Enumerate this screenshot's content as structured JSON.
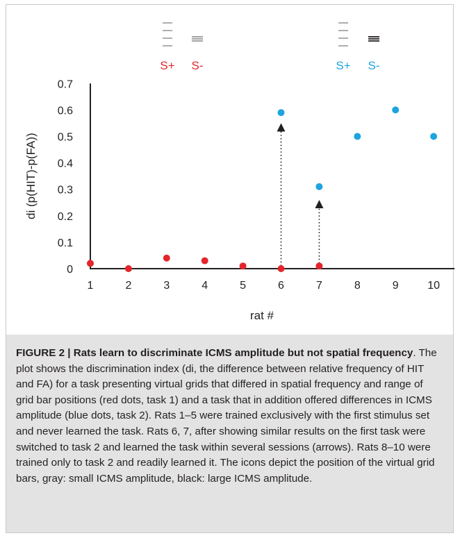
{
  "chart_data": {
    "type": "scatter",
    "x": [
      1,
      2,
      3,
      4,
      5,
      6,
      7,
      8,
      9,
      10
    ],
    "series": [
      {
        "color": "#e3262c",
        "points": [
          {
            "x": 1,
            "y": 0.02
          },
          {
            "x": 2,
            "y": 0.0
          },
          {
            "x": 3,
            "y": 0.04
          },
          {
            "x": 4,
            "y": 0.03
          },
          {
            "x": 5,
            "y": 0.01
          },
          {
            "x": 6,
            "y": 0.0
          },
          {
            "x": 7,
            "y": 0.01
          }
        ]
      },
      {
        "color": "#1ea4e0",
        "points": [
          {
            "x": 6,
            "y": 0.59
          },
          {
            "x": 7,
            "y": 0.31
          },
          {
            "x": 8,
            "y": 0.5
          },
          {
            "x": 9,
            "y": 0.6
          },
          {
            "x": 10,
            "y": 0.5
          }
        ]
      }
    ],
    "arrows": [
      {
        "x": 6,
        "from": 0.0,
        "to": 0.55
      },
      {
        "x": 7,
        "from": 0.01,
        "to": 0.26
      }
    ],
    "xlabel": "rat #",
    "ylabel": "di (p(HIT)-p(FA))",
    "xticks": [
      "1",
      "2",
      "3",
      "4",
      "5",
      "6",
      "7",
      "8",
      "9",
      "10"
    ],
    "yticks": [
      "0",
      "0.1",
      "0.2",
      "0.3",
      "0.4",
      "0.5",
      "0.6",
      "0.7"
    ],
    "xlim": [
      1,
      10
    ],
    "ylim": [
      0,
      0.7
    ],
    "grid": false,
    "legend": [
      {
        "label": "S+",
        "color": "#e3262c",
        "icon": "gray-wide-grid-icon"
      },
      {
        "label": "S-",
        "color": "#e3262c",
        "icon": "gray-narrow-grid-icon"
      },
      {
        "label": "S+",
        "color": "#1ea4e0",
        "icon": "gray-wide-grid-icon"
      },
      {
        "label": "S-",
        "color": "#1ea4e0",
        "icon": "black-narrow-grid-icon"
      }
    ]
  },
  "caption": {
    "lead": "FIGURE 2 | Rats learn to discriminate ICMS amplitude but not spatial frequency",
    "body": ". The plot shows the discrimination index (di, the difference between relative frequency of HIT and FA) for a task presenting virtual grids that differed in spatial frequency and range of grid bar positions (red dots, task 1) and a task that in addition offered differences in ICMS amplitude (blue dots, task 2). Rats 1–5 were trained exclusively with the first stimulus set and never learned the task. Rats 6, 7, after showing similar results on the first task were switched to task 2 and learned the task within several sessions (arrows). Rats 8–10 were trained only to task 2 and readily learned it. The icons depict the position of the virtual grid bars, gray: small ICMS amplitude, black: large ICMS amplitude."
  }
}
